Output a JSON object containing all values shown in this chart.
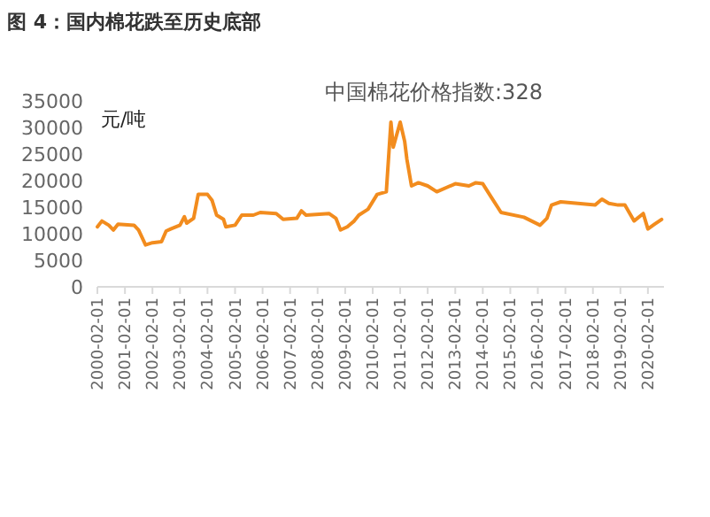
{
  "chart_data": {
    "type": "line",
    "title": "图 4：国内棉花跌至历史底部",
    "subtitle": "中国棉花价格指数:328",
    "ylabel": "元/吨",
    "x": [
      "2000-02",
      "2000-04",
      "2000-07",
      "2000-09",
      "2000-11",
      "2001-06",
      "2001-08",
      "2001-11",
      "2002-02",
      "2002-06",
      "2002-08",
      "2002-10",
      "2003-02",
      "2003-04",
      "2003-05",
      "2003-08",
      "2003-10",
      "2004-02",
      "2004-04",
      "2004-06",
      "2004-09",
      "2004-10",
      "2005-02",
      "2005-05",
      "2005-10",
      "2006-01",
      "2006-08",
      "2006-11",
      "2007-05",
      "2007-07",
      "2007-09",
      "2008-07",
      "2008-10",
      "2008-12",
      "2009-03",
      "2009-06",
      "2009-08",
      "2009-12",
      "2010-04",
      "2010-08",
      "2010-10",
      "2010-11",
      "2011-02",
      "2011-04",
      "2011-05",
      "2011-07",
      "2011-10",
      "2012-02",
      "2012-06",
      "2013-02",
      "2013-08",
      "2013-11",
      "2014-02",
      "2014-05",
      "2014-10",
      "2015-08",
      "2016-03",
      "2016-06",
      "2016-08",
      "2016-12",
      "2018-03",
      "2018-06",
      "2018-09",
      "2019-01",
      "2019-04",
      "2019-08",
      "2019-12",
      "2020-02",
      "2020-05",
      "2020-08"
    ],
    "series": [
      {
        "color": "#f28c1e",
        "values": [
          11300,
          12400,
          11600,
          10700,
          11800,
          11600,
          10700,
          7900,
          8300,
          8500,
          10500,
          10900,
          11600,
          13200,
          12000,
          12900,
          17400,
          17400,
          16300,
          13500,
          12700,
          11300,
          11600,
          13500,
          13500,
          14000,
          13800,
          12700,
          12900,
          14300,
          13500,
          13800,
          12900,
          10700,
          11300,
          12400,
          13500,
          14600,
          17400,
          17900,
          31000,
          26300,
          31000,
          27400,
          24000,
          19000,
          19600,
          19000,
          17900,
          19400,
          19000,
          19600,
          19400,
          17400,
          14000,
          13100,
          11600,
          12900,
          15400,
          16000,
          15400,
          16500,
          15700,
          15400,
          15400,
          12400,
          13800,
          10900,
          11800,
          12700
        ]
      }
    ],
    "xlim": [
      "2000-02-01",
      "2020-09-01"
    ],
    "xticks": [
      "2000-02-01",
      "2001-02-01",
      "2002-02-01",
      "2003-02-01",
      "2004-02-01",
      "2005-02-01",
      "2006-02-01",
      "2007-02-01",
      "2008-02-01",
      "2009-02-01",
      "2010-02-01",
      "2011-02-01",
      "2012-02-01",
      "2013-02-01",
      "2014-02-01",
      "2015-02-01",
      "2016-02-01",
      "2017-02-01",
      "2018-02-01",
      "2019-02-01",
      "2020-02-01"
    ],
    "ylim": [
      0,
      35000
    ],
    "yticks": [
      0,
      5000,
      10000,
      15000,
      20000,
      25000,
      30000,
      35000
    ],
    "grid": false,
    "marker": "none",
    "line_style": "solid"
  }
}
